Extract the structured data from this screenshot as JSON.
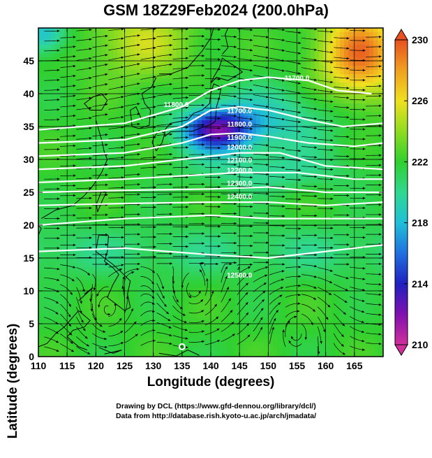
{
  "title": "GSM 18Z29Feb2024 (200.0hPa)",
  "xlabel": "Longitude (degrees)",
  "ylabel": "Latitude  (degrees)",
  "credits": {
    "line1": "Drawing by DCL (https://www.gfd-dennou.org/library/dcl/)",
    "line2": "Data from http://database.rish.kyoto-u.ac.jp/arch/jmadata/"
  },
  "chart_data": {
    "type": "heatmap",
    "x_range": [
      110,
      170
    ],
    "y_range": [
      0,
      50
    ],
    "x_ticks": [
      "110",
      "115",
      "120",
      "125",
      "130",
      "135",
      "140",
      "145",
      "150",
      "155",
      "160",
      "165"
    ],
    "y_ticks": [
      "0",
      "5",
      "10",
      "15",
      "20",
      "25",
      "30",
      "35",
      "40",
      "45"
    ],
    "shading_variable": "temperature",
    "colorbar": {
      "min": 210,
      "max": 230,
      "tick_labels": [
        "230",
        "226",
        "222",
        "218",
        "214",
        "210"
      ],
      "colors": [
        "#d0309a",
        "#8010b0",
        "#2020c0",
        "#2070e0",
        "#20c0d8",
        "#30d890",
        "#30d030",
        "#90dc20",
        "#f0e020",
        "#f0a020",
        "#e85020"
      ]
    },
    "contour_variable": "geopotential height",
    "contour_labels": [
      {
        "text": "11700.0",
        "lon": 145,
        "lat": 37
      },
      {
        "text": "11800.0",
        "lon": 145,
        "lat": 35
      },
      {
        "text": "11900.0",
        "lon": 145,
        "lat": 33
      },
      {
        "text": "12000.0",
        "lon": 145,
        "lat": 31.5
      },
      {
        "text": "12100.0",
        "lon": 145,
        "lat": 29.5
      },
      {
        "text": "12200.0",
        "lon": 145,
        "lat": 28
      },
      {
        "text": "12300.0",
        "lon": 145,
        "lat": 26
      },
      {
        "text": "12400.0",
        "lon": 145,
        "lat": 24
      },
      {
        "text": "12500.0",
        "lon": 145,
        "lat": 12
      },
      {
        "text": "11700.0",
        "lon": 155,
        "lat": 42
      },
      {
        "text": "11800.0",
        "lon": 134,
        "lat": 38
      }
    ],
    "contour_lines": [
      [
        [
          110,
          34.5
        ],
        [
          125,
          35.5
        ],
        [
          135,
          38
        ],
        [
          140,
          40.5
        ],
        [
          145,
          42
        ],
        [
          150,
          42.5
        ],
        [
          157,
          42
        ],
        [
          162,
          40.5
        ],
        [
          168,
          40
        ]
      ],
      [
        [
          110,
          32.5
        ],
        [
          125,
          33
        ],
        [
          135,
          35
        ],
        [
          140,
          37.5
        ],
        [
          145,
          38
        ],
        [
          150,
          37.5
        ],
        [
          157,
          36
        ],
        [
          163,
          35
        ],
        [
          170,
          35.5
        ]
      ],
      [
        [
          110,
          30.5
        ],
        [
          125,
          31
        ],
        [
          135,
          32.5
        ],
        [
          140,
          33.8
        ],
        [
          145,
          34
        ],
        [
          150,
          33.5
        ],
        [
          157,
          32.5
        ],
        [
          165,
          32
        ],
        [
          170,
          32.5
        ]
      ],
      [
        [
          110,
          28.5
        ],
        [
          125,
          29
        ],
        [
          135,
          30
        ],
        [
          145,
          31
        ],
        [
          152,
          31
        ],
        [
          160,
          29
        ],
        [
          170,
          28.5
        ]
      ],
      [
        [
          110,
          26.5
        ],
        [
          125,
          27
        ],
        [
          135,
          27.5
        ],
        [
          145,
          28
        ],
        [
          155,
          28
        ],
        [
          165,
          27
        ],
        [
          170,
          27
        ]
      ],
      [
        [
          110,
          25
        ],
        [
          125,
          25.3
        ],
        [
          140,
          25.5
        ],
        [
          150,
          25.8
        ],
        [
          160,
          25
        ],
        [
          170,
          25
        ]
      ],
      [
        [
          110,
          23
        ],
        [
          125,
          23.3
        ],
        [
          140,
          23.5
        ],
        [
          150,
          23.5
        ],
        [
          160,
          23
        ],
        [
          170,
          23.5
        ]
      ],
      [
        [
          110,
          20
        ],
        [
          125,
          21
        ],
        [
          140,
          21.5
        ],
        [
          150,
          21
        ],
        [
          160,
          21
        ],
        [
          170,
          21
        ]
      ],
      [
        [
          110,
          16
        ],
        [
          125,
          16.5
        ],
        [
          140,
          15.5
        ],
        [
          150,
          15
        ],
        [
          160,
          16
        ],
        [
          170,
          17
        ]
      ]
    ],
    "wind": "streamlines with arrows (westerly flow)"
  }
}
